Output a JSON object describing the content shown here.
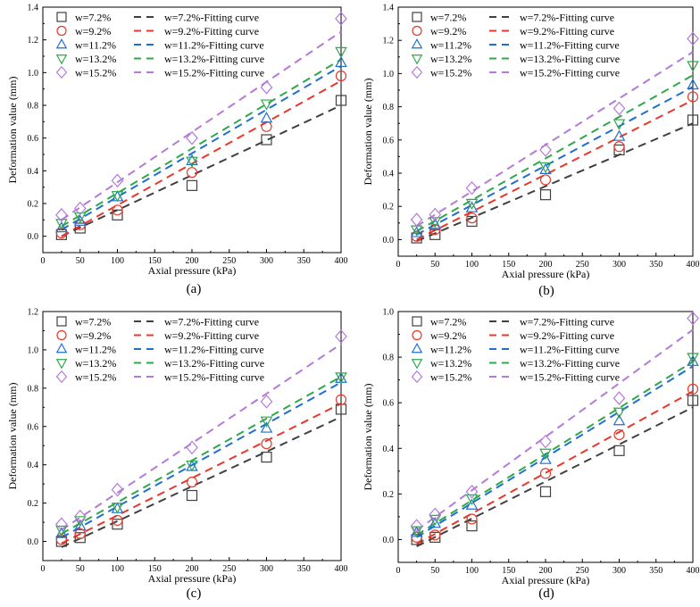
{
  "chart_data": [
    {
      "type": "scatter",
      "panel_label": "(a)",
      "xlabel": "Axial pressure (kPa)",
      "ylabel": "Deformation value (mm)",
      "xlim": [
        0,
        400
      ],
      "ylim": [
        -0.1,
        1.4
      ],
      "xticks": [
        "0",
        "50",
        "100",
        "150",
        "200",
        "250",
        "300",
        "350",
        "400"
      ],
      "yticks": [
        "0.0",
        "0.2",
        "0.4",
        "0.6",
        "0.8",
        "1.0",
        "1.2",
        "1.4"
      ],
      "grid": false,
      "legend_position": "top-left",
      "x": [
        25,
        50,
        100,
        200,
        300,
        400
      ],
      "series": [
        {
          "name": "w=7.2%",
          "fit_name": "w=7.2%-Fitting curve",
          "color": "#404040",
          "marker": "square",
          "values": [
            0.01,
            0.05,
            0.13,
            0.31,
            0.59,
            0.83
          ],
          "fit": [
            0.0,
            0.8
          ]
        },
        {
          "name": "w=9.2%",
          "fit_name": "w=9.2%-Fitting curve",
          "color": "#e8382c",
          "marker": "circle",
          "values": [
            0.02,
            0.07,
            0.16,
            0.39,
            0.67,
            0.98
          ],
          "fit": [
            0.0,
            0.95
          ]
        },
        {
          "name": "w=11.2%",
          "fit_name": "w=11.2%-Fitting curve",
          "color": "#1f6fd1",
          "marker": "triangle-up",
          "values": [
            0.05,
            0.09,
            0.24,
            0.46,
            0.72,
            1.06
          ],
          "fit": [
            0.04,
            1.04
          ]
        },
        {
          "name": "w=13.2%",
          "fit_name": "w=13.2%-Fitting curve",
          "color": "#2ea84a",
          "marker": "triangle-down",
          "values": [
            0.08,
            0.12,
            0.25,
            0.46,
            0.81,
            1.13
          ],
          "fit": [
            0.06,
            1.08
          ]
        },
        {
          "name": "w=15.2%",
          "fit_name": "w=15.2%-Fitting curve",
          "color": "#b57ad8",
          "marker": "diamond",
          "values": [
            0.13,
            0.17,
            0.34,
            0.6,
            0.91,
            1.33
          ],
          "fit": [
            0.1,
            1.25
          ]
        }
      ]
    },
    {
      "type": "scatter",
      "panel_label": "(b)",
      "xlabel": "Axial pressure (kPa)",
      "ylabel": "Deformation value (mm)",
      "xlim": [
        0,
        400
      ],
      "ylim": [
        -0.1,
        1.4
      ],
      "xticks": [
        "0",
        "50",
        "100",
        "150",
        "200",
        "250",
        "300",
        "350",
        "400"
      ],
      "yticks": [
        "0.0",
        "0.2",
        "0.4",
        "0.6",
        "0.8",
        "1.0",
        "1.2",
        "1.4"
      ],
      "grid": false,
      "legend_position": "top-left",
      "x": [
        25,
        50,
        100,
        200,
        300,
        400
      ],
      "series": [
        {
          "name": "w=7.2%",
          "fit_name": "w=7.2%-Fitting curve",
          "color": "#404040",
          "marker": "square",
          "values": [
            0.01,
            0.03,
            0.11,
            0.27,
            0.54,
            0.72
          ],
          "fit": [
            -0.01,
            0.7
          ]
        },
        {
          "name": "w=9.2%",
          "fit_name": "w=9.2%-Fitting curve",
          "color": "#e8382c",
          "marker": "circle",
          "values": [
            0.02,
            0.06,
            0.13,
            0.36,
            0.56,
            0.86
          ],
          "fit": [
            0.0,
            0.84
          ]
        },
        {
          "name": "w=11.2%",
          "fit_name": "w=11.2%-Fitting curve",
          "color": "#1f6fd1",
          "marker": "triangle-up",
          "values": [
            0.04,
            0.09,
            0.19,
            0.42,
            0.62,
            0.93
          ],
          "fit": [
            0.03,
            0.92
          ]
        },
        {
          "name": "w=13.2%",
          "fit_name": "w=13.2%-Fitting curve",
          "color": "#2ea84a",
          "marker": "triangle-down",
          "values": [
            0.06,
            0.11,
            0.22,
            0.44,
            0.7,
            1.05
          ],
          "fit": [
            0.05,
            0.99
          ]
        },
        {
          "name": "w=15.2%",
          "fit_name": "w=15.2%-Fitting curve",
          "color": "#b57ad8",
          "marker": "diamond",
          "values": [
            0.12,
            0.15,
            0.31,
            0.54,
            0.79,
            1.21
          ],
          "fit": [
            0.08,
            1.13
          ]
        }
      ]
    },
    {
      "type": "scatter",
      "panel_label": "(c)",
      "xlabel": "Axial pressure (kPa)",
      "ylabel": "Deformation value (mm)",
      "xlim": [
        0,
        400
      ],
      "ylim": [
        -0.1,
        1.2
      ],
      "xticks": [
        "0",
        "50",
        "100",
        "150",
        "200",
        "250",
        "300",
        "350",
        "400"
      ],
      "yticks": [
        "0.0",
        "0.2",
        "0.4",
        "0.6",
        "0.8",
        "1.0",
        "1.2"
      ],
      "grid": false,
      "legend_position": "top-left",
      "x": [
        25,
        50,
        100,
        200,
        300,
        400
      ],
      "series": [
        {
          "name": "w=7.2%",
          "fit_name": "w=7.2%-Fitting curve",
          "color": "#404040",
          "marker": "square",
          "values": [
            0.0,
            0.02,
            0.09,
            0.24,
            0.44,
            0.69
          ],
          "fit": [
            -0.03,
            0.65
          ]
        },
        {
          "name": "w=9.2%",
          "fit_name": "w=9.2%-Fitting curve",
          "color": "#e8382c",
          "marker": "circle",
          "values": [
            0.01,
            0.04,
            0.11,
            0.31,
            0.51,
            0.74
          ],
          "fit": [
            -0.01,
            0.72
          ]
        },
        {
          "name": "w=11.2%",
          "fit_name": "w=11.2%-Fitting curve",
          "color": "#1f6fd1",
          "marker": "triangle-up",
          "values": [
            0.04,
            0.08,
            0.17,
            0.39,
            0.59,
            0.85
          ],
          "fit": [
            0.02,
            0.83
          ]
        },
        {
          "name": "w=13.2%",
          "fit_name": "w=13.2%-Fitting curve",
          "color": "#2ea84a",
          "marker": "triangle-down",
          "values": [
            0.06,
            0.11,
            0.18,
            0.4,
            0.63,
            0.86
          ],
          "fit": [
            0.04,
            0.86
          ]
        },
        {
          "name": "w=15.2%",
          "fit_name": "w=15.2%-Fitting curve",
          "color": "#b57ad8",
          "marker": "diamond",
          "values": [
            0.09,
            0.13,
            0.27,
            0.49,
            0.73,
            1.07
          ],
          "fit": [
            0.06,
            1.03
          ]
        }
      ]
    },
    {
      "type": "scatter",
      "panel_label": "(d)",
      "xlabel": "Axial pressure (kPa)",
      "ylabel": "Deformation value (mm)",
      "xlim": [
        0,
        400
      ],
      "ylim": [
        -0.1,
        1.0
      ],
      "xticks": [
        "0",
        "50",
        "100",
        "150",
        "200",
        "250",
        "300",
        "350",
        "400"
      ],
      "yticks": [
        "0.0",
        "0.2",
        "0.4",
        "0.6",
        "0.8",
        "1.0"
      ],
      "grid": false,
      "legend_position": "top-left",
      "x": [
        25,
        50,
        100,
        200,
        300,
        400
      ],
      "series": [
        {
          "name": "w=7.2%",
          "fit_name": "w=7.2%-Fitting curve",
          "color": "#404040",
          "marker": "square",
          "values": [
            0.0,
            0.01,
            0.06,
            0.21,
            0.39,
            0.61
          ],
          "fit": [
            -0.03,
            0.58
          ]
        },
        {
          "name": "w=9.2%",
          "fit_name": "w=9.2%-Fitting curve",
          "color": "#e8382c",
          "marker": "circle",
          "values": [
            0.01,
            0.02,
            0.09,
            0.29,
            0.46,
            0.66
          ],
          "fit": [
            -0.02,
            0.65
          ]
        },
        {
          "name": "w=11.2%",
          "fit_name": "w=11.2%-Fitting curve",
          "color": "#1f6fd1",
          "marker": "triangle-up",
          "values": [
            0.03,
            0.07,
            0.15,
            0.35,
            0.52,
            0.78
          ],
          "fit": [
            0.01,
            0.76
          ]
        },
        {
          "name": "w=13.2%",
          "fit_name": "w=13.2%-Fitting curve",
          "color": "#2ea84a",
          "marker": "triangle-down",
          "values": [
            0.04,
            0.09,
            0.18,
            0.38,
            0.56,
            0.8
          ],
          "fit": [
            0.02,
            0.78
          ]
        },
        {
          "name": "w=15.2%",
          "fit_name": "w=15.2%-Fitting curve",
          "color": "#b57ad8",
          "marker": "diamond",
          "values": [
            0.06,
            0.11,
            0.21,
            0.43,
            0.62,
            0.97
          ],
          "fit": [
            0.04,
            0.92
          ]
        }
      ]
    }
  ]
}
